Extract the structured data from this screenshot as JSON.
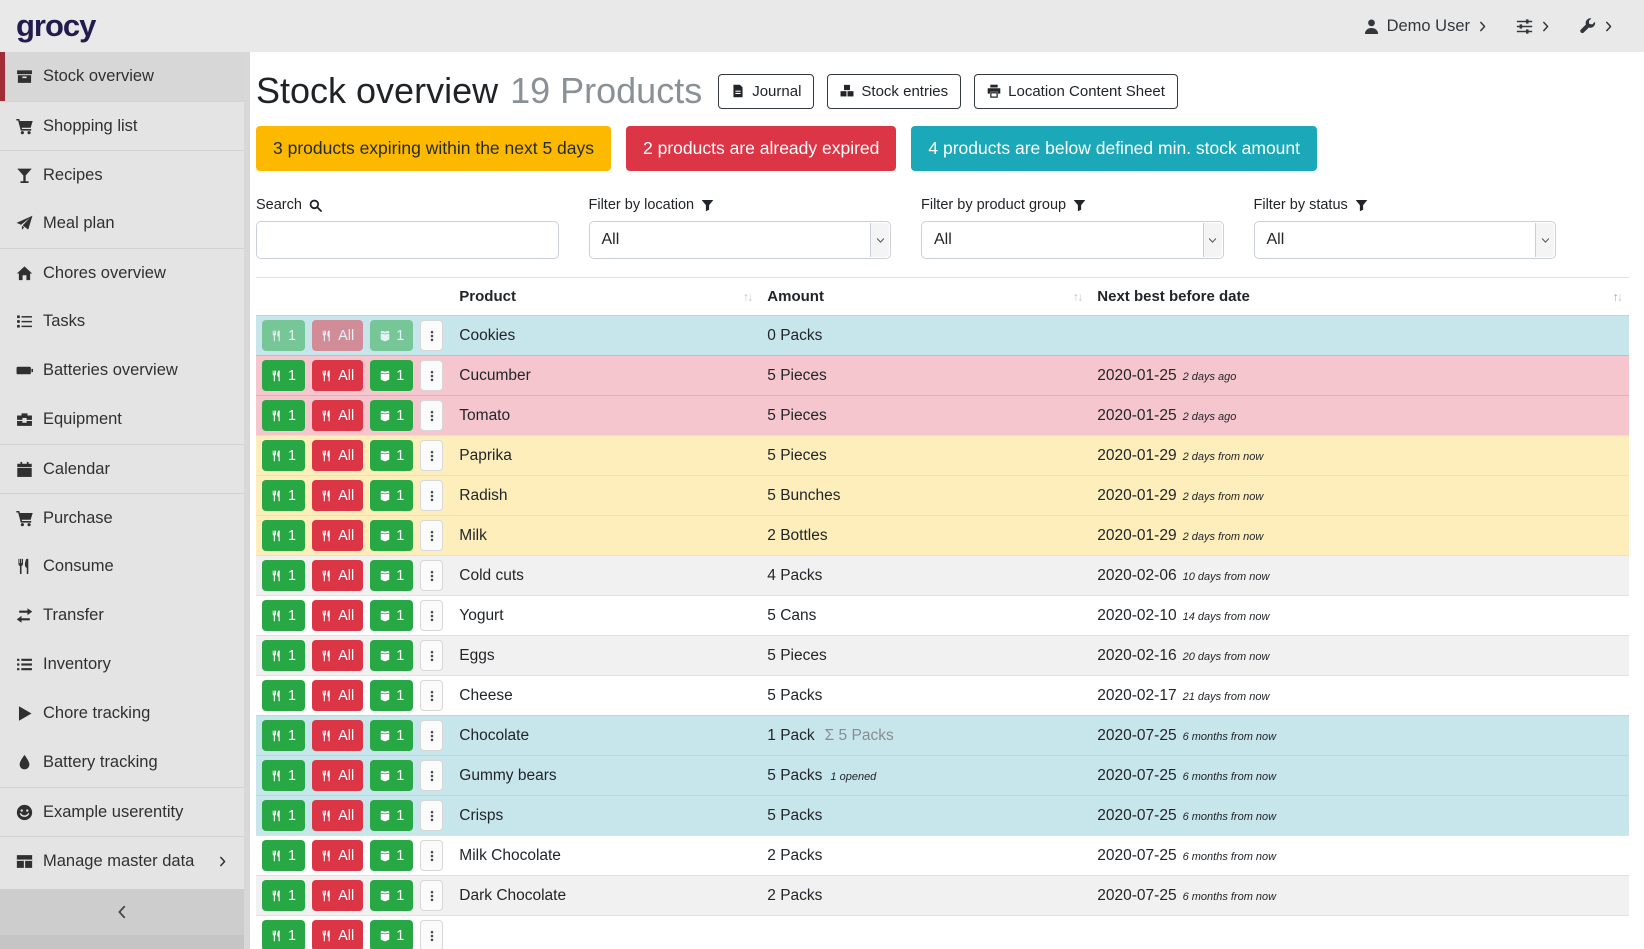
{
  "navbar": {
    "logo": "grocy",
    "user_label": "Demo User"
  },
  "sidebar": {
    "items": [
      {
        "label": "Stock overview",
        "icon": "box",
        "active": true
      },
      {
        "label": "Shopping list",
        "icon": "cart",
        "divider": true
      },
      {
        "label": "Recipes",
        "icon": "glass",
        "divider": true
      },
      {
        "label": "Meal plan",
        "icon": "plane"
      },
      {
        "label": "Chores overview",
        "icon": "home",
        "divider": true
      },
      {
        "label": "Tasks",
        "icon": "tasks"
      },
      {
        "label": "Batteries overview",
        "icon": "battery"
      },
      {
        "label": "Equipment",
        "icon": "toolbox"
      },
      {
        "label": "Calendar",
        "icon": "calendar",
        "divider": true
      },
      {
        "label": "Purchase",
        "icon": "cart",
        "divider": true
      },
      {
        "label": "Consume",
        "icon": "utensils"
      },
      {
        "label": "Transfer",
        "icon": "exchange"
      },
      {
        "label": "Inventory",
        "icon": "list"
      },
      {
        "label": "Chore tracking",
        "icon": "play"
      },
      {
        "label": "Battery tracking",
        "icon": "droplet"
      },
      {
        "label": "Example userentity",
        "icon": "smiley",
        "divider": true
      },
      {
        "label": "Manage master data",
        "icon": "tableic",
        "divider": true,
        "chevron": true
      }
    ]
  },
  "page": {
    "title": "Stock overview",
    "subtitle": "19 Products"
  },
  "toolbar": {
    "buttons": [
      {
        "label": "Journal",
        "icon": "file"
      },
      {
        "label": "Stock entries",
        "icon": "boxes"
      },
      {
        "label": "Location Content Sheet",
        "icon": "print"
      }
    ]
  },
  "alerts": [
    {
      "text": "3 products expiring within the next 5 days",
      "type": "warning",
      "color": "#fcb900"
    },
    {
      "text": "2 products are already expired",
      "type": "danger",
      "color": "#dc3545"
    },
    {
      "text": "4 products are below defined min. stock amount",
      "type": "info",
      "color": "#1ba8b8"
    }
  ],
  "filters": {
    "search_label": "Search",
    "location_label": "Filter by location",
    "group_label": "Filter by product group",
    "status_label": "Filter by status",
    "selected": "All",
    "search_value": ""
  },
  "table": {
    "columns": [
      {
        "label": "Product"
      },
      {
        "label": "Amount"
      },
      {
        "label": "Next best before date",
        "sorted": "asc"
      }
    ],
    "row_buttons": {
      "consume_one": "1",
      "consume_all": "All",
      "open_one": "1"
    },
    "rows": [
      {
        "product": "Cookies",
        "amount": "0 Packs",
        "date": "",
        "date_note": "",
        "status": "belowmin",
        "disabled": true
      },
      {
        "product": "Cucumber",
        "amount": "5 Pieces",
        "date": "2020-01-25",
        "date_note": "2 days ago",
        "status": "expired"
      },
      {
        "product": "Tomato",
        "amount": "5 Pieces",
        "date": "2020-01-25",
        "date_note": "2 days ago",
        "status": "expired"
      },
      {
        "product": "Paprika",
        "amount": "5 Pieces",
        "date": "2020-01-29",
        "date_note": "2 days from now",
        "status": "expiring"
      },
      {
        "product": "Radish",
        "amount": "5 Bunches",
        "date": "2020-01-29",
        "date_note": "2 days from now",
        "status": "expiring"
      },
      {
        "product": "Milk",
        "amount": "2 Bottles",
        "date": "2020-01-29",
        "date_note": "2 days from now",
        "status": "expiring"
      },
      {
        "product": "Cold cuts",
        "amount": "4 Packs",
        "date": "2020-02-06",
        "date_note": "10 days from now",
        "status": ""
      },
      {
        "product": "Yogurt",
        "amount": "5 Cans",
        "date": "2020-02-10",
        "date_note": "14 days from now",
        "status": ""
      },
      {
        "product": "Eggs",
        "amount": "5 Pieces",
        "date": "2020-02-16",
        "date_note": "20 days from now",
        "status": ""
      },
      {
        "product": "Cheese",
        "amount": "5 Packs",
        "date": "2020-02-17",
        "date_note": "21 days from now",
        "status": ""
      },
      {
        "product": "Chocolate",
        "amount": "1 Pack",
        "sum": "Σ 5 Packs",
        "date": "2020-07-25",
        "date_note": "6 months from now",
        "status": "belowmin"
      },
      {
        "product": "Gummy bears",
        "amount": "5 Packs",
        "opened": "1 opened",
        "date": "2020-07-25",
        "date_note": "6 months from now",
        "status": "belowmin"
      },
      {
        "product": "Crisps",
        "amount": "5 Packs",
        "date": "2020-07-25",
        "date_note": "6 months from now",
        "status": "belowmin"
      },
      {
        "product": "Milk Chocolate",
        "amount": "2 Packs",
        "date": "2020-07-25",
        "date_note": "6 months from now",
        "status": ""
      },
      {
        "product": "Dark Chocolate",
        "amount": "2 Packs",
        "date": "2020-07-25",
        "date_note": "6 months from now",
        "status": ""
      },
      {
        "product": "",
        "amount": "",
        "date": "",
        "date_note": "",
        "status": ""
      }
    ]
  }
}
